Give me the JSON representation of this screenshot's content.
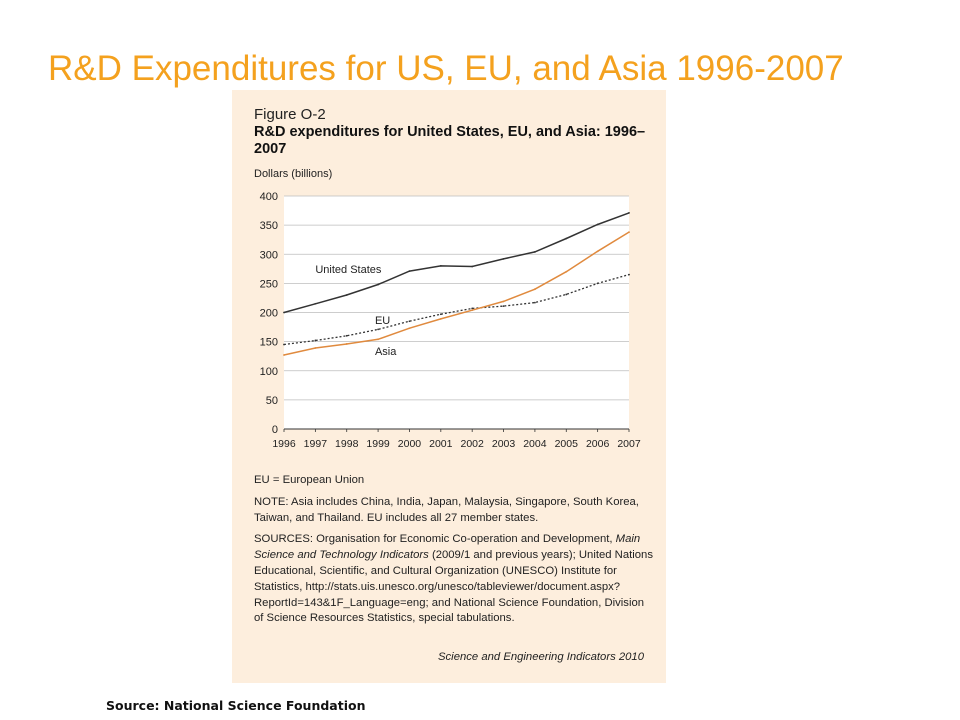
{
  "slide": {
    "title": "R&D Expenditures for US, EU, and Asia 1996-2007",
    "source": "Source: National Science Foundation"
  },
  "figure": {
    "label": "Figure O-2",
    "title": "R&D expenditures for United States, EU, and Asia: 1996–2007",
    "unit": "Dollars (billions)",
    "note_eu": "EU = European Union",
    "note": "NOTE: Asia includes China, India, Japan, Malaysia, Singapore, South Korea, Taiwan, and Thailand. EU includes all 27 member states.",
    "sources_part1": "SOURCES: Organisation for Economic Co-operation and Development, ",
    "sources_italic": "Main Science and Technology Indicators",
    "sources_part2": " (2009/1 and previous years); United Nations Educational, Scientific, and Cultural Organization (UNESCO) Institute for Statistics, http://stats.uis.unesco.org/unesco/tableviewer/document.aspx?ReportId=143&1F_Language=eng; and National Science Foundation, Division of Science Resources Statistics, special tabulations.",
    "publication": "Science and Engineering Indicators 2010"
  },
  "chart_data": {
    "type": "line",
    "x": [
      1996,
      1997,
      1998,
      1999,
      2000,
      2001,
      2002,
      2003,
      2004,
      2005,
      2006,
      2007
    ],
    "ylim": [
      0,
      400
    ],
    "yticks": [
      0,
      50,
      100,
      150,
      200,
      250,
      300,
      350,
      400
    ],
    "ylabel": "Dollars (billions)",
    "grid": true,
    "series": [
      {
        "name": "United States",
        "color": "#333333",
        "dash": "",
        "values": [
          200,
          215,
          230,
          248,
          271,
          280,
          279,
          292,
          304,
          327,
          351,
          371
        ]
      },
      {
        "name": "EU",
        "color": "#333333",
        "dash": "2,2",
        "values": [
          145,
          152,
          160,
          171,
          185,
          197,
          207,
          211,
          217,
          231,
          250,
          265
        ]
      },
      {
        "name": "Asia",
        "color": "#e08a3e",
        "dash": "",
        "values": [
          127,
          139,
          146,
          154,
          173,
          189,
          204,
          219,
          240,
          270,
          305,
          338
        ]
      }
    ]
  }
}
